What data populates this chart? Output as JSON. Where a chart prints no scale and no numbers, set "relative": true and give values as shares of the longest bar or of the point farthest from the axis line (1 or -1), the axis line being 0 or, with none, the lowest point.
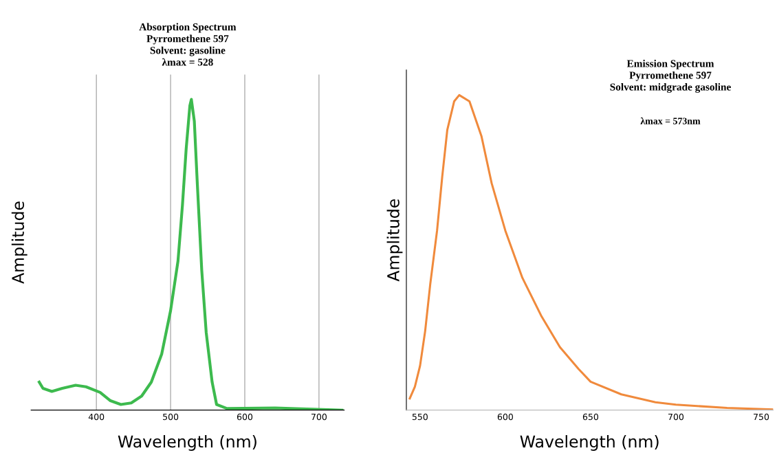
{
  "chart_data": [
    {
      "type": "line",
      "title": "Absorption Spectrum\nPyrromethene 597\nSolvent: gasoline",
      "subtitle": "λmax = 528",
      "xlabel": "Wavelength (nm)",
      "ylabel": "Amplitude",
      "relative": true,
      "grid": "x",
      "marker": "none",
      "line_style": "solid",
      "xlim": [
        312,
        734
      ],
      "xticks": [
        400,
        500,
        600,
        700
      ],
      "series": [
        {
          "color": "#3dba4e",
          "x": [
            323,
            328,
            340,
            354,
            372,
            386,
            405,
            419,
            433,
            447,
            461,
            474,
            488,
            500,
            510,
            516,
            521,
            526,
            528,
            532,
            536,
            542,
            548,
            556,
            562,
            576,
            641,
            731
          ],
          "values": [
            0.09,
            0.07,
            0.06,
            0.07,
            0.08,
            0.075,
            0.057,
            0.03,
            0.018,
            0.023,
            0.045,
            0.09,
            0.18,
            0.32,
            0.48,
            0.66,
            0.84,
            0.98,
            1.0,
            0.93,
            0.73,
            0.45,
            0.25,
            0.09,
            0.018,
            0.005,
            0.007,
            0
          ]
        }
      ]
    },
    {
      "type": "line",
      "title": "Emission Spectrum\nPyrromethene 597\nSolvent: midgrade gasoline",
      "subtitle": "λmax = 573nm",
      "xlabel": "Wavelength (nm)",
      "ylabel": "Amplitude",
      "relative": true,
      "marker": "none",
      "line_style": "solid",
      "xlim": [
        542,
        757
      ],
      "xticks": [
        550,
        600,
        650,
        700,
        750
      ],
      "series": [
        {
          "color": "#f08a3c",
          "x": [
            544,
            547,
            550,
            553,
            556,
            560,
            563,
            566,
            570,
            573,
            579,
            586,
            592,
            600,
            610,
            621,
            632,
            643,
            650,
            668,
            688,
            700,
            730,
            757
          ],
          "values": [
            0.037,
            0.074,
            0.14,
            0.25,
            0.4,
            0.57,
            0.74,
            0.89,
            0.98,
            1.0,
            0.98,
            0.87,
            0.72,
            0.57,
            0.42,
            0.3,
            0.2,
            0.13,
            0.09,
            0.05,
            0.025,
            0.017,
            0.007,
            0.002
          ]
        }
      ]
    }
  ]
}
